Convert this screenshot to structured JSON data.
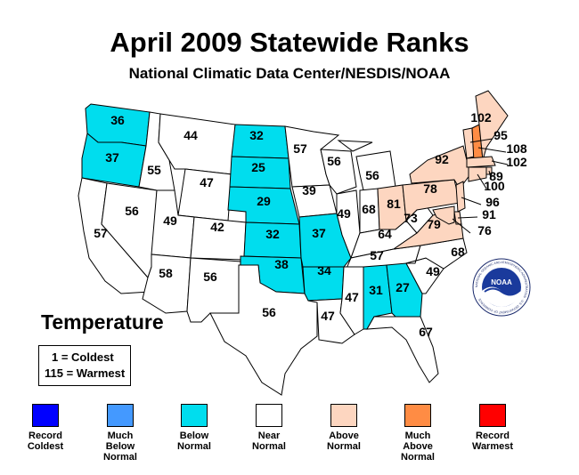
{
  "title": "April 2009 Statewide Ranks",
  "subtitle": "National Climatic Data Center/NESDIS/NOAA",
  "colors": {
    "record_coldest": "#0000ff",
    "much_below": "#4499ff",
    "below": "#00ddee",
    "near": "#ffffff",
    "above": "#fdd6c0",
    "much_above": "#ff8c44",
    "record_warmest": "#ff0000"
  },
  "states": [
    {
      "id": "WA",
      "rank": "36",
      "cat": "below"
    },
    {
      "id": "OR",
      "rank": "37",
      "cat": "below"
    },
    {
      "id": "CA",
      "rank": "57",
      "cat": "near"
    },
    {
      "id": "ID",
      "rank": "55",
      "cat": "near"
    },
    {
      "id": "NV",
      "rank": "56",
      "cat": "near"
    },
    {
      "id": "MT",
      "rank": "44",
      "cat": "near"
    },
    {
      "id": "WY",
      "rank": "47",
      "cat": "near"
    },
    {
      "id": "UT",
      "rank": "49",
      "cat": "near"
    },
    {
      "id": "AZ",
      "rank": "58",
      "cat": "near"
    },
    {
      "id": "CO",
      "rank": "42",
      "cat": "near"
    },
    {
      "id": "NM",
      "rank": "56",
      "cat": "near"
    },
    {
      "id": "ND",
      "rank": "32",
      "cat": "below"
    },
    {
      "id": "SD",
      "rank": "25",
      "cat": "below"
    },
    {
      "id": "NE",
      "rank": "29",
      "cat": "below"
    },
    {
      "id": "KS",
      "rank": "32",
      "cat": "below"
    },
    {
      "id": "OK",
      "rank": "38",
      "cat": "below"
    },
    {
      "id": "TX",
      "rank": "56",
      "cat": "near"
    },
    {
      "id": "MN",
      "rank": "57",
      "cat": "near"
    },
    {
      "id": "IA",
      "rank": "39",
      "cat": "near"
    },
    {
      "id": "MO",
      "rank": "37",
      "cat": "below"
    },
    {
      "id": "AR",
      "rank": "34",
      "cat": "below"
    },
    {
      "id": "LA",
      "rank": "47",
      "cat": "near"
    },
    {
      "id": "WI",
      "rank": "56",
      "cat": "near"
    },
    {
      "id": "IL",
      "rank": "49",
      "cat": "near"
    },
    {
      "id": "MI",
      "rank": "56",
      "cat": "near"
    },
    {
      "id": "IN",
      "rank": "68",
      "cat": "near"
    },
    {
      "id": "OH",
      "rank": "81",
      "cat": "above"
    },
    {
      "id": "KY",
      "rank": "64",
      "cat": "near"
    },
    {
      "id": "TN",
      "rank": "57",
      "cat": "near"
    },
    {
      "id": "MS",
      "rank": "47",
      "cat": "near"
    },
    {
      "id": "AL",
      "rank": "31",
      "cat": "below"
    },
    {
      "id": "GA",
      "rank": "27",
      "cat": "below"
    },
    {
      "id": "FL",
      "rank": "67",
      "cat": "near"
    },
    {
      "id": "SC",
      "rank": "49",
      "cat": "near"
    },
    {
      "id": "NC",
      "rank": "68",
      "cat": "near"
    },
    {
      "id": "VA",
      "rank": "79",
      "cat": "above"
    },
    {
      "id": "WV",
      "rank": "73",
      "cat": "near"
    },
    {
      "id": "PA",
      "rank": "78",
      "cat": "above"
    },
    {
      "id": "NY",
      "rank": "92",
      "cat": "above"
    },
    {
      "id": "VT",
      "rank": "95",
      "cat": "above"
    },
    {
      "id": "NH",
      "rank": "108",
      "cat": "much_above"
    },
    {
      "id": "ME",
      "rank": "102",
      "cat": "above"
    },
    {
      "id": "MA",
      "rank": "102",
      "cat": "above"
    },
    {
      "id": "RI",
      "rank": "89",
      "cat": "above"
    },
    {
      "id": "CT",
      "rank": "100",
      "cat": "above"
    },
    {
      "id": "NJ",
      "rank": "96",
      "cat": "above"
    },
    {
      "id": "DE",
      "rank": "91",
      "cat": "above"
    },
    {
      "id": "MD",
      "rank": "76",
      "cat": "above"
    }
  ],
  "legend": {
    "title": "Temperature",
    "key_line1": "1 = Coldest",
    "key_line2": "115 = Warmest",
    "items": [
      {
        "line1": "Record",
        "line2": "Coldest",
        "line3": "",
        "color": "#0000ff"
      },
      {
        "line1": "Much",
        "line2": "Below",
        "line3": "Normal",
        "color": "#4499ff"
      },
      {
        "line1": "Below",
        "line2": "Normal",
        "line3": "",
        "color": "#00ddee"
      },
      {
        "line1": "Near",
        "line2": "Normal",
        "line3": "",
        "color": "#ffffff"
      },
      {
        "line1": "Above",
        "line2": "Normal",
        "line3": "",
        "color": "#fdd6c0"
      },
      {
        "line1": "Much",
        "line2": "Above",
        "line3": "Normal",
        "color": "#ff8c44"
      },
      {
        "line1": "Record",
        "line2": "Warmest",
        "line3": "",
        "color": "#ff0000"
      }
    ]
  },
  "logo": {
    "text": "NOAA",
    "ring_text": "NATIONAL OCEANIC AND ATMOSPHERIC ADMINISTRATION · U.S. DEPARTMENT OF COMMERCE"
  }
}
